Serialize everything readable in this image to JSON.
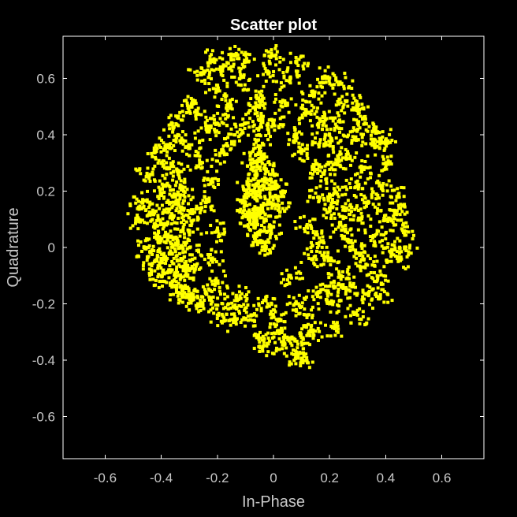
{
  "chart_data": {
    "type": "scatter",
    "title": "Scatter plot",
    "xlabel": "In-Phase",
    "ylabel": "Quadrature",
    "xlim": [
      -0.75,
      0.75
    ],
    "ylim": [
      -0.75,
      0.75
    ],
    "xticks": [
      -0.6,
      -0.4,
      -0.2,
      0,
      0.2,
      0.4,
      0.6
    ],
    "xtick_labels": [
      "-0.6",
      "-0.4",
      "-0.2",
      "0",
      "0.2",
      "0.4",
      "0.6"
    ],
    "yticks": [
      -0.6,
      -0.4,
      -0.2,
      0,
      0.2,
      0.4,
      0.6
    ],
    "ytick_labels": [
      "-0.6",
      "-0.4",
      "-0.2",
      "0",
      "0.2",
      "0.4",
      "0.6"
    ],
    "grid": false,
    "background_color": "#000000",
    "marker_color": "#ffff00",
    "axis_color": "#ffffff",
    "label_color": "#c8c8c8",
    "series": [
      {
        "points": [
          [
            -0.36,
            0.1
          ],
          [
            -0.34,
            0.02
          ],
          [
            -0.38,
            0.16
          ],
          [
            -0.32,
            0.2
          ],
          [
            -0.4,
            -0.04
          ],
          [
            -0.35,
            -0.1
          ],
          [
            -0.3,
            0.06
          ],
          [
            -0.42,
            0.08
          ],
          [
            -0.33,
            0.14
          ],
          [
            -0.37,
            -0.02
          ],
          [
            -0.31,
            -0.08
          ],
          [
            -0.39,
            0.22
          ],
          [
            -0.34,
            0.26
          ],
          [
            -0.36,
            -0.12
          ],
          [
            -0.29,
            0.12
          ],
          [
            -0.41,
            0.02
          ],
          [
            -0.32,
            -0.14
          ],
          [
            -0.38,
            0.04
          ],
          [
            -0.35,
            0.18
          ],
          [
            -0.33,
            -0.04
          ],
          [
            -0.43,
            0.12
          ],
          [
            -0.3,
            0.0
          ],
          [
            -0.37,
            0.28
          ],
          [
            -0.34,
            -0.16
          ],
          [
            -0.05,
            0.2
          ],
          [
            -0.08,
            0.12
          ],
          [
            -0.03,
            0.28
          ],
          [
            -0.06,
            0.04
          ],
          [
            -0.02,
            0.16
          ],
          [
            -0.09,
            0.22
          ],
          [
            -0.04,
            0.32
          ],
          [
            -0.07,
            0.08
          ],
          [
            0.0,
            0.18
          ],
          [
            -0.1,
            0.16
          ],
          [
            -0.05,
            0.36
          ],
          [
            -0.03,
            0.1
          ],
          [
            -0.06,
            0.26
          ],
          [
            -0.01,
            0.06
          ],
          [
            -0.08,
            0.3
          ],
          [
            -0.04,
            0.02
          ],
          [
            0.02,
            0.14
          ],
          [
            -0.07,
            0.2
          ],
          [
            -0.05,
            0.4
          ],
          [
            -0.02,
            0.24
          ],
          [
            -0.09,
            0.1
          ],
          [
            -0.03,
            0.0
          ],
          [
            0.01,
            0.22
          ],
          [
            -0.06,
            0.14
          ],
          [
            -0.28,
            0.48
          ],
          [
            -0.2,
            0.56
          ],
          [
            -0.12,
            0.6
          ],
          [
            -0.02,
            0.62
          ],
          [
            0.06,
            0.6
          ],
          [
            0.14,
            0.54
          ],
          [
            0.22,
            0.46
          ],
          [
            0.28,
            0.38
          ],
          [
            0.32,
            0.28
          ],
          [
            0.34,
            0.16
          ],
          [
            0.36,
            0.04
          ],
          [
            0.33,
            -0.06
          ],
          [
            0.28,
            -0.14
          ],
          [
            0.2,
            -0.2
          ],
          [
            0.12,
            -0.24
          ],
          [
            0.02,
            -0.26
          ],
          [
            -0.08,
            -0.24
          ],
          [
            -0.16,
            -0.2
          ],
          [
            -0.24,
            -0.16
          ],
          [
            -0.28,
            -0.08
          ],
          [
            -0.3,
            0.36
          ],
          [
            -0.24,
            0.42
          ],
          [
            -0.16,
            0.5
          ],
          [
            -0.06,
            0.54
          ],
          [
            0.04,
            0.52
          ],
          [
            0.12,
            0.48
          ],
          [
            0.2,
            0.4
          ],
          [
            0.26,
            0.32
          ],
          [
            0.3,
            0.22
          ],
          [
            0.31,
            0.1
          ],
          [
            0.3,
            -0.02
          ],
          [
            0.24,
            -0.1
          ],
          [
            0.16,
            -0.16
          ],
          [
            0.08,
            -0.2
          ],
          [
            -0.02,
            -0.2
          ],
          [
            -0.12,
            -0.18
          ],
          [
            -0.2,
            -0.12
          ],
          [
            0.22,
            0.2
          ],
          [
            0.24,
            0.08
          ],
          [
            0.2,
            -0.04
          ],
          [
            0.38,
            0.22
          ],
          [
            0.4,
            0.1
          ],
          [
            0.42,
            -0.02
          ],
          [
            0.37,
            -0.1
          ],
          [
            0.44,
            0.18
          ],
          [
            0.4,
            0.3
          ],
          [
            0.36,
            0.36
          ],
          [
            0.3,
            0.44
          ],
          [
            -0.26,
            0.3
          ],
          [
            -0.22,
            0.24
          ],
          [
            -0.24,
            0.16
          ],
          [
            -0.2,
            0.06
          ],
          [
            -0.22,
            -0.04
          ],
          [
            -0.18,
            0.34
          ],
          [
            -0.14,
            0.4
          ],
          [
            -0.2,
            0.44
          ],
          [
            0.1,
            0.34
          ],
          [
            0.14,
            0.28
          ],
          [
            0.16,
            0.18
          ],
          [
            0.12,
            0.08
          ],
          [
            0.14,
            -0.04
          ],
          [
            0.08,
            0.4
          ],
          [
            0.18,
            0.36
          ],
          [
            0.06,
            -0.1
          ],
          [
            -0.1,
            0.66
          ],
          [
            0.0,
            0.68
          ],
          [
            0.08,
            0.66
          ],
          [
            -0.18,
            0.64
          ],
          [
            0.46,
            0.06
          ],
          [
            0.47,
            0.0
          ],
          [
            0.45,
            -0.04
          ],
          [
            0.44,
            0.12
          ],
          [
            -0.26,
            0.62
          ],
          [
            -0.22,
            0.66
          ],
          [
            -0.14,
            0.68
          ],
          [
            0.18,
            0.6
          ],
          [
            0.26,
            0.52
          ],
          [
            -0.48,
            0.1
          ],
          [
            -0.46,
            0.0
          ],
          [
            -0.47,
            0.16
          ],
          [
            -0.45,
            0.26
          ],
          [
            -0.42,
            0.34
          ],
          [
            -0.4,
            -0.1
          ],
          [
            -0.44,
            -0.06
          ],
          [
            0.04,
            -0.34
          ],
          [
            0.08,
            -0.38
          ],
          [
            0.1,
            -0.4
          ],
          [
            0.02,
            -0.3
          ],
          [
            -0.06,
            -0.32
          ],
          [
            0.14,
            -0.3
          ],
          [
            0.1,
            -0.32
          ],
          [
            -0.02,
            -0.34
          ],
          [
            0.38,
            -0.18
          ],
          [
            0.3,
            -0.24
          ],
          [
            0.22,
            -0.28
          ],
          [
            0.34,
            -0.16
          ],
          [
            -0.3,
            -0.18
          ],
          [
            -0.26,
            -0.2
          ],
          [
            -0.2,
            -0.24
          ],
          [
            -0.14,
            -0.26
          ],
          [
            -0.34,
            0.4
          ],
          [
            -0.38,
            0.36
          ],
          [
            -0.36,
            0.44
          ],
          [
            -0.3,
            0.5
          ],
          [
            0.24,
            0.58
          ],
          [
            0.3,
            0.5
          ],
          [
            0.36,
            0.42
          ],
          [
            0.4,
            0.38
          ],
          [
            -0.04,
            0.46
          ],
          [
            -0.06,
            0.5
          ],
          [
            -0.1,
            0.44
          ],
          [
            0.0,
            0.44
          ],
          [
            0.16,
            0.44
          ],
          [
            0.22,
            0.3
          ],
          [
            0.26,
            0.14
          ],
          [
            0.27,
            0.02
          ],
          [
            0.18,
            0.26
          ],
          [
            0.2,
            0.14
          ],
          [
            0.17,
            0.02
          ],
          [
            0.22,
            -0.14
          ]
        ]
      }
    ]
  }
}
